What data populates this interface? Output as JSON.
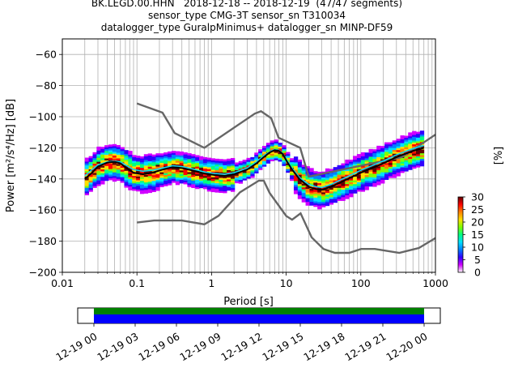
{
  "titles": {
    "line1": "BK.LEGD.00.HHN   2018-12-18 -- 2018-12-19  (47/47 segments)",
    "line2": "sensor_type CMG-3T sensor_sn T310034",
    "line3": "datalogger_type GuralpMinimus+ datalogger_sn MINP-DF59"
  },
  "chart_data": [
    {
      "type": "heatmap",
      "xlabel": "Period [s]",
      "ylabel": "Power [m²/s⁴/Hz] [dB]",
      "x_scale": "log",
      "xlim": [
        0.01,
        1000
      ],
      "ylim": [
        -200,
        -50
      ],
      "grid": true,
      "x_ticks": [
        {
          "value": 0.01,
          "label": "0.01"
        },
        {
          "value": 0.1,
          "label": "0.1"
        },
        {
          "value": 1,
          "label": "1"
        },
        {
          "value": 10,
          "label": "10"
        },
        {
          "value": 100,
          "label": "100"
        },
        {
          "value": 1000,
          "label": "1000"
        }
      ],
      "y_ticks": [
        -200,
        -180,
        -160,
        -140,
        -120,
        -100,
        -80,
        -60
      ],
      "colorbar": {
        "label": "[%]",
        "ticks": [
          0,
          5,
          10,
          15,
          20,
          25,
          30
        ],
        "range": [
          0,
          30
        ],
        "colors": [
          "#ffffff",
          "#d000ff",
          "#3000ff",
          "#0080ff",
          "#00e0ff",
          "#00ff80",
          "#80ff00",
          "#ffe000",
          "#ff8000",
          "#ff0000",
          "#600000"
        ]
      },
      "nhnm": {
        "name": "NHNM",
        "points": [
          [
            0.1,
            -91.5
          ],
          [
            0.22,
            -97.4
          ],
          [
            0.32,
            -110.5
          ],
          [
            0.8,
            -120
          ],
          [
            3.8,
            -98
          ],
          [
            4.6,
            -96.5
          ],
          [
            6.3,
            -101
          ],
          [
            7.9,
            -113.5
          ],
          [
            15.4,
            -120
          ],
          [
            20,
            -138.5
          ],
          [
            354.8,
            -126
          ],
          [
            1000,
            -111.5
          ]
        ]
      },
      "nlnm": {
        "name": "NLNM",
        "points": [
          [
            0.1,
            -168
          ],
          [
            0.17,
            -166.7
          ],
          [
            0.4,
            -166.7
          ],
          [
            0.8,
            -169.2
          ],
          [
            1.24,
            -163.7
          ],
          [
            2.4,
            -148.6
          ],
          [
            4.3,
            -141.1
          ],
          [
            5,
            -141.1
          ],
          [
            6,
            -149
          ],
          [
            10,
            -163.8
          ],
          [
            12,
            -166.2
          ],
          [
            15.6,
            -162.1
          ],
          [
            21.9,
            -177.5
          ],
          [
            31.6,
            -185
          ],
          [
            45,
            -187.5
          ],
          [
            70,
            -187.5
          ],
          [
            101,
            -185
          ],
          [
            154,
            -185
          ],
          [
            328,
            -187.5
          ],
          [
            600,
            -184.4
          ],
          [
            1000,
            -178
          ]
        ]
      },
      "mode_curve": {
        "points": [
          [
            0.02,
            -140
          ],
          [
            0.025,
            -136
          ],
          [
            0.03,
            -132
          ],
          [
            0.04,
            -129.5
          ],
          [
            0.05,
            -129
          ],
          [
            0.06,
            -130
          ],
          [
            0.07,
            -132.5
          ],
          [
            0.09,
            -136
          ],
          [
            0.12,
            -137
          ],
          [
            0.16,
            -136
          ],
          [
            0.22,
            -134
          ],
          [
            0.3,
            -132.5
          ],
          [
            0.4,
            -133
          ],
          [
            0.55,
            -134.5
          ],
          [
            0.8,
            -136.5
          ],
          [
            1.1,
            -137.5
          ],
          [
            1.5,
            -138
          ],
          [
            2,
            -137
          ],
          [
            3,
            -134
          ],
          [
            4,
            -130
          ],
          [
            5,
            -126
          ],
          [
            6,
            -123
          ],
          [
            7,
            -121.5
          ],
          [
            8,
            -122
          ],
          [
            9,
            -124
          ],
          [
            10,
            -128
          ],
          [
            12,
            -134
          ],
          [
            15,
            -140
          ],
          [
            20,
            -145
          ],
          [
            25,
            -146.5
          ],
          [
            30,
            -147
          ],
          [
            40,
            -145
          ],
          [
            60,
            -141
          ],
          [
            100,
            -136
          ],
          [
            200,
            -130
          ],
          [
            300,
            -126
          ],
          [
            500,
            -122
          ],
          [
            700,
            -120
          ]
        ]
      },
      "mean_curve": {
        "points": [
          [
            0.02,
            -138
          ],
          [
            0.025,
            -134
          ],
          [
            0.03,
            -131
          ],
          [
            0.04,
            -129
          ],
          [
            0.05,
            -128.5
          ],
          [
            0.06,
            -129
          ],
          [
            0.07,
            -131
          ],
          [
            0.09,
            -134
          ],
          [
            0.12,
            -135
          ],
          [
            0.16,
            -134.5
          ],
          [
            0.22,
            -133
          ],
          [
            0.3,
            -131.5
          ],
          [
            0.4,
            -132
          ],
          [
            0.55,
            -133.5
          ],
          [
            0.8,
            -135.5
          ],
          [
            1.1,
            -136.5
          ],
          [
            1.5,
            -137
          ],
          [
            2,
            -136
          ],
          [
            3,
            -133
          ],
          [
            4,
            -129
          ],
          [
            5,
            -125
          ],
          [
            6,
            -122.5
          ],
          [
            7,
            -121
          ],
          [
            8,
            -121.5
          ],
          [
            9,
            -123.5
          ],
          [
            10,
            -127
          ],
          [
            12,
            -133
          ],
          [
            15,
            -139
          ],
          [
            20,
            -143.5
          ],
          [
            25,
            -145
          ],
          [
            30,
            -145.5
          ],
          [
            40,
            -143.5
          ],
          [
            60,
            -139.5
          ],
          [
            100,
            -134.5
          ],
          [
            200,
            -128.5
          ],
          [
            300,
            -124.5
          ],
          [
            500,
            -120.5
          ],
          [
            700,
            -118.5
          ]
        ]
      }
    },
    {
      "type": "table",
      "name": "data-coverage",
      "x_ticks": [
        "12-19 00",
        "12-19 03",
        "12-19 06",
        "12-19 09",
        "12-19 12",
        "12-19 15",
        "12-19 18",
        "12-19 21",
        "12-20 00"
      ],
      "bands": [
        {
          "color": "#008000"
        },
        {
          "color": "#0000ff"
        }
      ]
    }
  ]
}
